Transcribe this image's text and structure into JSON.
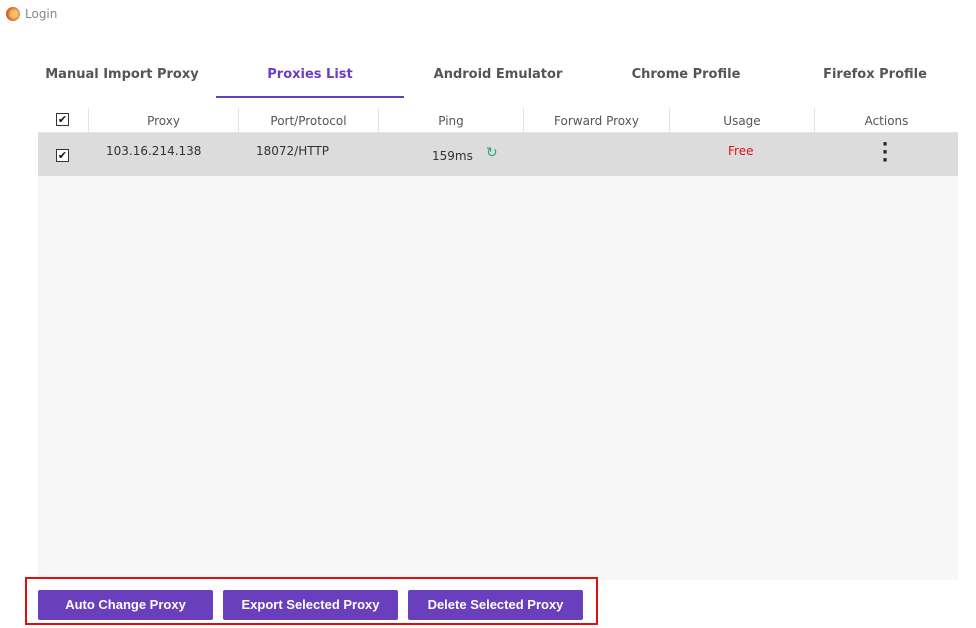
{
  "window": {
    "title": "Login"
  },
  "tabs": [
    {
      "label": "Manual Import Proxy"
    },
    {
      "label": "Proxies List",
      "active": true
    },
    {
      "label": "Android Emulator"
    },
    {
      "label": "Chrome Profile"
    },
    {
      "label": "Firefox Profile"
    }
  ],
  "table": {
    "columns": [
      "Proxy",
      "Port/Protocol",
      "Ping",
      "Forward Proxy",
      "Usage",
      "Actions"
    ],
    "rows": [
      {
        "checked": true,
        "proxy": "103.16.214.138",
        "port_protocol": "18072/HTTP",
        "ping": "159ms",
        "forward_proxy": "",
        "usage": "Free"
      }
    ]
  },
  "buttons": {
    "auto_change": "Auto Change Proxy",
    "export": "Export Selected Proxy",
    "delete": "Delete Selected Proxy"
  },
  "colors": {
    "accent": "#6a3fbe",
    "usage_free": "#e01010",
    "refresh": "#2aa57a",
    "highlight_box": "#e01010"
  }
}
